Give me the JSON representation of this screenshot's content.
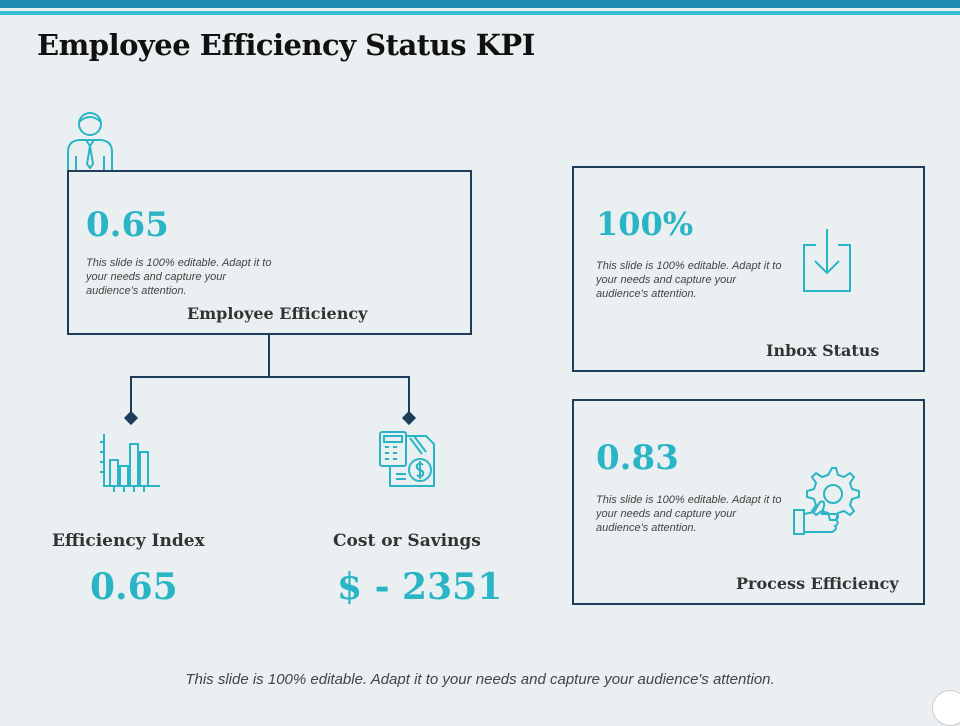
{
  "title": "Employee Efficiency Status KPI",
  "employee_efficiency": {
    "value": "0.65",
    "description": "This slide is 100% editable. Adapt it to your needs and capture your audience's attention.",
    "label": "Employee Efficiency"
  },
  "inbox_status": {
    "value": "100%",
    "description": "This slide is 100% editable. Adapt it to your needs and capture your audience's attention.",
    "label": "Inbox Status"
  },
  "process_efficiency": {
    "value": "0.83",
    "description": "This slide is 100% editable. Adapt it to your needs and capture your audience's attention.",
    "label": "Process Efficiency"
  },
  "efficiency_index": {
    "label": "Efficiency Index",
    "value": "0.65"
  },
  "cost_or_savings": {
    "label": "Cost or Savings",
    "value": "$ - 2351"
  },
  "footer": "This slide is 100% editable. Adapt it to your needs and capture your audience's attention.",
  "colors": {
    "accent": "#2ab5c6",
    "border": "#1d3d58",
    "background": "#eaf0f1"
  }
}
